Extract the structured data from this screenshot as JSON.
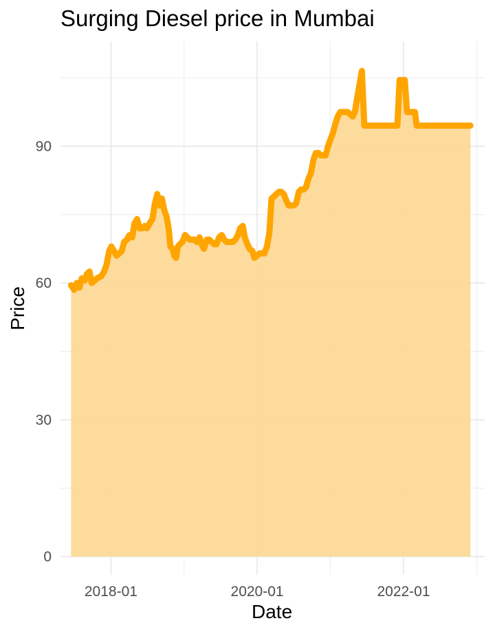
{
  "chart_data": {
    "type": "area",
    "title": "Surging Diesel price in Mumbai",
    "xlabel": "Date",
    "ylabel": "Price",
    "x_axis": {
      "scale": "date",
      "range": [
        "2017-04-24",
        "2023-02-10"
      ],
      "ticks": [
        "2018-01-01",
        "2020-01-01",
        "2022-01-01"
      ],
      "tick_labels": [
        "2018-01",
        "2020-01",
        "2022-01"
      ]
    },
    "y_axis": {
      "range": [
        -4,
        113
      ],
      "ticks": [
        0,
        30,
        60,
        90
      ],
      "tick_labels": [
        "0",
        "30",
        "60",
        "90"
      ]
    },
    "grid": true,
    "legend": "none",
    "colors": {
      "line": "#FFA500",
      "fill": "#FDD998",
      "grid": "#EBEBEB"
    },
    "series": [
      {
        "points": [
          [
            "2017-06-16",
            59.5
          ],
          [
            "2017-07-01",
            58.5
          ],
          [
            "2017-07-14",
            60.0
          ],
          [
            "2017-07-27",
            59.0
          ],
          [
            "2017-08-08",
            61.0
          ],
          [
            "2017-08-22",
            60.5
          ],
          [
            "2017-09-03",
            62.0
          ],
          [
            "2017-09-16",
            62.5
          ],
          [
            "2017-09-27",
            60.0
          ],
          [
            "2017-10-10",
            60.5
          ],
          [
            "2017-10-23",
            61.0
          ],
          [
            "2017-11-14",
            61.5
          ],
          [
            "2017-11-28",
            62.5
          ],
          [
            "2017-12-10",
            64.0
          ],
          [
            "2017-12-23",
            67.0
          ],
          [
            "2018-01-03",
            68.0
          ],
          [
            "2018-01-16",
            67.0
          ],
          [
            "2018-01-28",
            66.0
          ],
          [
            "2018-02-12",
            66.5
          ],
          [
            "2018-02-24",
            67.0
          ],
          [
            "2018-03-08",
            69.0
          ],
          [
            "2018-03-22",
            69.5
          ],
          [
            "2018-04-03",
            70.5
          ],
          [
            "2018-04-17",
            70.0
          ],
          [
            "2018-04-28",
            73.0
          ],
          [
            "2018-05-11",
            74.0
          ],
          [
            "2018-05-24",
            72.0
          ],
          [
            "2018-06-07",
            72.0
          ],
          [
            "2018-06-18",
            72.5
          ],
          [
            "2018-06-29",
            72.0
          ],
          [
            "2018-07-12",
            73.0
          ],
          [
            "2018-07-27",
            74.0
          ],
          [
            "2018-08-09",
            77.5
          ],
          [
            "2018-08-20",
            79.5
          ],
          [
            "2018-08-31",
            77.0
          ],
          [
            "2018-09-12",
            78.5
          ],
          [
            "2018-09-24",
            76.0
          ],
          [
            "2018-10-06",
            74.5
          ],
          [
            "2018-10-16",
            72.0
          ],
          [
            "2018-10-25",
            68.0
          ],
          [
            "2018-11-05",
            67.5
          ],
          [
            "2018-11-13",
            66.0
          ],
          [
            "2018-11-22",
            65.5
          ],
          [
            "2018-12-01",
            68.0
          ],
          [
            "2018-12-11",
            68.5
          ],
          [
            "2018-12-24",
            69.0
          ],
          [
            "2019-01-06",
            70.5
          ],
          [
            "2019-01-17",
            70.0
          ],
          [
            "2019-01-30",
            69.5
          ],
          [
            "2019-02-12",
            69.5
          ],
          [
            "2019-02-23",
            69.5
          ],
          [
            "2019-03-07",
            69.0
          ],
          [
            "2019-03-19",
            70.0
          ],
          [
            "2019-03-30",
            68.5
          ],
          [
            "2019-04-10",
            67.5
          ],
          [
            "2019-04-24",
            69.5
          ],
          [
            "2019-05-06",
            69.5
          ],
          [
            "2019-05-19",
            69.0
          ],
          [
            "2019-06-01",
            68.5
          ],
          [
            "2019-06-12",
            68.5
          ],
          [
            "2019-06-25",
            70.0
          ],
          [
            "2019-07-08",
            70.5
          ],
          [
            "2019-07-20",
            69.5
          ],
          [
            "2019-08-02",
            69.0
          ],
          [
            "2019-08-20",
            69.0
          ],
          [
            "2019-09-02",
            69.0
          ],
          [
            "2019-09-14",
            69.5
          ],
          [
            "2019-09-27",
            70.5
          ],
          [
            "2019-10-08",
            72.0
          ],
          [
            "2019-10-21",
            72.5
          ],
          [
            "2019-10-31",
            70.0
          ],
          [
            "2019-11-13",
            68.5
          ],
          [
            "2019-11-24",
            67.5
          ],
          [
            "2019-12-08",
            67.0
          ],
          [
            "2019-12-18",
            65.5
          ],
          [
            "2019-12-31",
            66.0
          ],
          [
            "2020-01-13",
            66.5
          ],
          [
            "2020-01-26",
            66.5
          ],
          [
            "2020-02-06",
            66.5
          ],
          [
            "2020-02-19",
            68.0
          ],
          [
            "2020-03-02",
            71.0
          ],
          [
            "2020-03-13",
            78.5
          ],
          [
            "2020-03-26",
            79.0
          ],
          [
            "2020-04-06",
            79.5
          ],
          [
            "2020-04-19",
            80.0
          ],
          [
            "2020-04-30",
            80.0
          ],
          [
            "2020-05-13",
            79.5
          ],
          [
            "2020-05-26",
            78.0
          ],
          [
            "2020-06-06",
            77.0
          ],
          [
            "2020-06-19",
            77.0
          ],
          [
            "2020-07-01",
            77.0
          ],
          [
            "2020-07-14",
            77.5
          ],
          [
            "2020-07-27",
            80.0
          ],
          [
            "2020-08-07",
            80.5
          ],
          [
            "2020-08-20",
            80.5
          ],
          [
            "2020-09-01",
            81.0
          ],
          [
            "2020-09-14",
            83.0
          ],
          [
            "2020-09-25",
            84.0
          ],
          [
            "2020-10-08",
            87.0
          ],
          [
            "2020-10-20",
            88.5
          ],
          [
            "2020-11-02",
            88.5
          ],
          [
            "2020-11-13",
            88.0
          ],
          [
            "2020-11-26",
            88.0
          ],
          [
            "2020-12-08",
            88.0
          ],
          [
            "2020-12-20",
            90.0
          ],
          [
            "2021-01-01",
            91.5
          ],
          [
            "2021-01-14",
            93.0
          ],
          [
            "2021-01-26",
            95.0
          ],
          [
            "2021-02-06",
            96.5
          ],
          [
            "2021-02-19",
            97.5
          ],
          [
            "2021-03-04",
            97.5
          ],
          [
            "2021-03-15",
            97.5
          ],
          [
            "2021-03-28",
            97.5
          ],
          [
            "2021-04-09",
            97.0
          ],
          [
            "2021-04-22",
            96.5
          ],
          [
            "2021-05-03",
            97.5
          ],
          [
            "2021-05-14",
            100.5
          ],
          [
            "2021-05-28",
            104.0
          ],
          [
            "2021-06-07",
            106.5
          ],
          [
            "2021-06-19",
            94.5
          ],
          [
            "2021-07-16",
            94.5
          ],
          [
            "2021-09-01",
            94.5
          ],
          [
            "2021-10-10",
            94.5
          ],
          [
            "2021-11-19",
            94.5
          ],
          [
            "2021-12-01",
            94.5
          ],
          [
            "2021-12-12",
            104.5
          ],
          [
            "2021-12-25",
            104.5
          ],
          [
            "2022-01-07",
            104.5
          ],
          [
            "2022-01-18",
            97.5
          ],
          [
            "2022-02-10",
            97.5
          ],
          [
            "2022-02-27",
            97.5
          ],
          [
            "2022-03-07",
            94.5
          ],
          [
            "2022-05-01",
            94.5
          ],
          [
            "2022-08-15",
            94.5
          ],
          [
            "2022-12-01",
            94.5
          ]
        ]
      }
    ]
  }
}
